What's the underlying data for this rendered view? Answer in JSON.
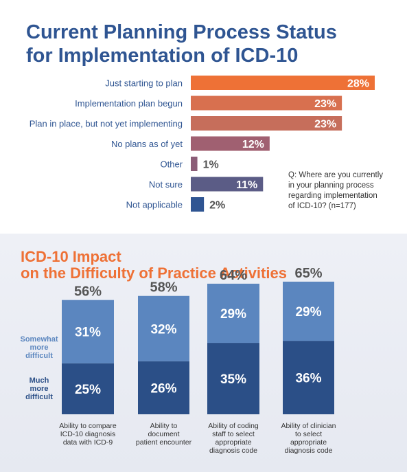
{
  "chart_data": [
    {
      "type": "bar",
      "orientation": "horizontal",
      "title": "Current Planning Process Status for Implementation of ICD-10",
      "title_lines": [
        "Current Planning Process Status",
        "for Implementation of ICD-10"
      ],
      "categories": [
        "Just starting to plan",
        "Implementation plan begun",
        "Plan in place, but not yet implementing",
        "No plans as of yet",
        "Other",
        "Not sure",
        "Not applicable"
      ],
      "values": [
        28,
        23,
        23,
        12,
        1,
        11,
        2
      ],
      "value_labels": [
        "28%",
        "23%",
        "23%",
        "12%",
        "1%",
        "11%",
        "2%"
      ],
      "colors": [
        "#ee7136",
        "#d8704f",
        "#c66e5b",
        "#a06071",
        "#8b5d77",
        "#5b5c86",
        "#2f5592"
      ],
      "xlim": [
        0,
        28
      ],
      "note_lines": [
        "Q:  Where are you currently",
        "in your planning process",
        "regarding implementation",
        "of ICD-10? (n=177)"
      ]
    },
    {
      "type": "bar",
      "stacked": true,
      "title": "ICD-10 Impact on the Difficulty of Practice Activities",
      "title_lines": [
        "ICD-10 Impact",
        "on the Difficulty of Practice Activities"
      ],
      "categories": [
        [
          "Ability to compare",
          "ICD-10 diagnosis",
          "data with ICD-9"
        ],
        [
          "Ability to",
          "document",
          "patient encounter"
        ],
        [
          "Ability of coding",
          "staff to select",
          "appropriate",
          "diagnosis code"
        ],
        [
          "Ability of clinician",
          "to select",
          "appropriate",
          "diagnosis code"
        ]
      ],
      "series": [
        {
          "name_lines": [
            "Much",
            "more",
            "difficult"
          ],
          "values": [
            25,
            26,
            35,
            36
          ],
          "labels": [
            "25%",
            "26%",
            "35%",
            "36%"
          ],
          "color": "#2b4f87"
        },
        {
          "name_lines": [
            "Somewhat",
            "more",
            "difficult"
          ],
          "values": [
            31,
            32,
            29,
            29
          ],
          "labels": [
            "31%",
            "32%",
            "29%",
            "29%"
          ],
          "color": "#5b86bf"
        }
      ],
      "totals": [
        "56%",
        "58%",
        "64%",
        "65%"
      ],
      "total_values": [
        56,
        58,
        64,
        65
      ]
    }
  ]
}
